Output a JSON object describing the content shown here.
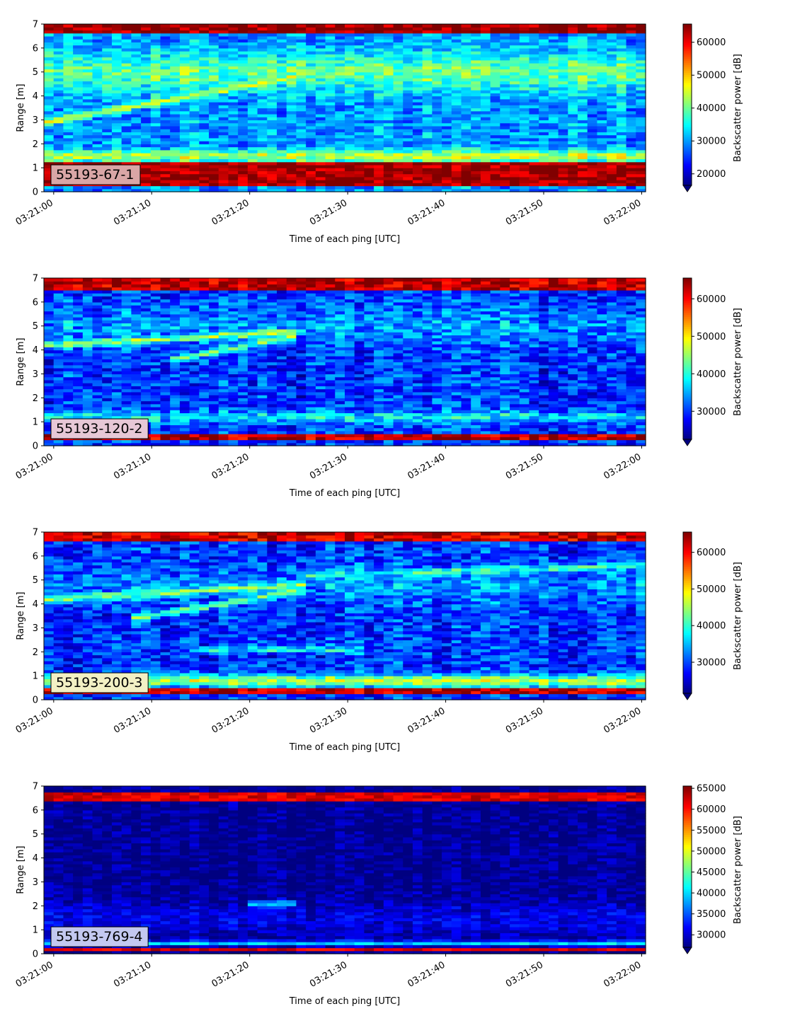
{
  "figure": {
    "panel_count": 4
  },
  "chart_data": [
    {
      "type": "heatmap",
      "panel_label": "55193-67-1",
      "panel_label_color": "#d9a6a6",
      "xlabel": "Time of each ping [UTC]",
      "ylabel": "Range [m]",
      "x_ticks": [
        "03:21:00",
        "03:21:10",
        "03:21:20",
        "03:21:30",
        "03:21:40",
        "03:21:50",
        "03:22:00"
      ],
      "x_range_seconds": [
        -1,
        60.4
      ],
      "ylim": [
        0,
        7
      ],
      "y_ticks": [
        0,
        1,
        2,
        3,
        4,
        5,
        6,
        7
      ],
      "colorbar": {
        "label": "Backscatter power [dB]",
        "cmap": "jet",
        "vmin": 16500,
        "vmax": 65535,
        "ticks": [
          20000,
          30000,
          40000,
          50000,
          60000
        ],
        "tick_labels": [
          "20000",
          "30000",
          "40000",
          "50000",
          "60000"
        ],
        "extend": "min"
      },
      "features": {
        "bottom_band": [
          0.2,
          1.2
        ],
        "bottom_value": 64000,
        "top_band": [
          6.6,
          7.0
        ],
        "top_value": 64000,
        "background_value": 30000,
        "mid_band": {
          "center": 5.0,
          "width": 1.6,
          "value": 40000
        },
        "low_band": {
          "center": 1.5,
          "width": 0.5,
          "value": 44000
        },
        "tracks": [
          {
            "t0": -1,
            "t1": 26,
            "r0": 2.9,
            "r1": 4.9,
            "value": 45000
          }
        ],
        "noise": 5000
      }
    },
    {
      "type": "heatmap",
      "panel_label": "55193-120-2",
      "panel_label_color": "#e7c8d6",
      "xlabel": "Time of each ping [UTC]",
      "ylabel": "Range [m]",
      "x_ticks": [
        "03:21:00",
        "03:21:10",
        "03:21:20",
        "03:21:30",
        "03:21:40",
        "03:21:50",
        "03:22:00"
      ],
      "x_range_seconds": [
        -1,
        60.4
      ],
      "ylim": [
        0,
        7
      ],
      "y_ticks": [
        0,
        1,
        2,
        3,
        4,
        5,
        6,
        7
      ],
      "colorbar": {
        "label": "Backscatter power [dB]",
        "cmap": "jet",
        "vmin": 22500,
        "vmax": 65535,
        "ticks": [
          30000,
          40000,
          50000,
          60000
        ],
        "tick_labels": [
          "30000",
          "40000",
          "50000",
          "60000"
        ],
        "extend": "min"
      },
      "features": {
        "bottom_band": [
          0.2,
          0.5
        ],
        "bottom_value": 63000,
        "top_band": [
          6.5,
          7.0
        ],
        "top_value": 63000,
        "background_value": 30000,
        "mid_band": {
          "center": 5.0,
          "width": 1.5,
          "value": 34000
        },
        "low_band": {
          "center": 1.2,
          "width": 0.5,
          "value": 38000
        },
        "tracks": [
          {
            "t0": -1,
            "t1": 26,
            "r0": 4.2,
            "r1": 4.8,
            "value": 45000
          },
          {
            "t0": 12,
            "t1": 25,
            "r0": 3.6,
            "r1": 4.6,
            "value": 44000
          }
        ],
        "noise": 5000
      }
    },
    {
      "type": "heatmap",
      "panel_label": "55193-200-3",
      "panel_label_color": "#f2f0c4",
      "xlabel": "Time of each ping [UTC]",
      "ylabel": "Range [m]",
      "x_ticks": [
        "03:21:00",
        "03:21:10",
        "03:21:20",
        "03:21:30",
        "03:21:40",
        "03:21:50",
        "03:22:00"
      ],
      "x_range_seconds": [
        -1,
        60.4
      ],
      "ylim": [
        0,
        7
      ],
      "y_ticks": [
        0,
        1,
        2,
        3,
        4,
        5,
        6,
        7
      ],
      "colorbar": {
        "label": "Backscatter power [dB]",
        "cmap": "jet",
        "vmin": 21500,
        "vmax": 65535,
        "ticks": [
          30000,
          40000,
          50000,
          60000
        ],
        "tick_labels": [
          "30000",
          "40000",
          "50000",
          "60000"
        ],
        "extend": "min"
      },
      "features": {
        "bottom_band": [
          0.2,
          0.5
        ],
        "bottom_value": 63000,
        "top_band": [
          6.6,
          7.0
        ],
        "top_value": 62000,
        "background_value": 29000,
        "mid_band": {
          "center": 4.8,
          "width": 1.6,
          "value": 33000
        },
        "low_band": {
          "center": 0.8,
          "width": 0.5,
          "value": 46000
        },
        "tracks": [
          {
            "t0": -1,
            "t1": 26,
            "r0": 4.2,
            "r1": 4.8,
            "value": 44000
          },
          {
            "t0": 8,
            "t1": 26,
            "r0": 3.4,
            "r1": 4.6,
            "value": 43000
          },
          {
            "t0": 25,
            "t1": 60.4,
            "r0": 5.2,
            "r1": 5.6,
            "value": 40000
          },
          {
            "t0": 14,
            "t1": 32,
            "r0": 2.1,
            "r1": 2.1,
            "value": 38000
          }
        ],
        "noise": 5000
      }
    },
    {
      "type": "heatmap",
      "panel_label": "55193-769-4",
      "panel_label_color": "#c3c8f0",
      "xlabel": "Time of each ping [UTC]",
      "ylabel": "Range [m]",
      "x_ticks": [
        "03:21:00",
        "03:21:10",
        "03:21:20",
        "03:21:30",
        "03:21:40",
        "03:21:50",
        "03:22:00"
      ],
      "x_range_seconds": [
        -1,
        60.4
      ],
      "ylim": [
        0,
        7
      ],
      "y_ticks": [
        0,
        1,
        2,
        3,
        4,
        5,
        6,
        7
      ],
      "colorbar": {
        "label": "Backscatter power [dB]",
        "cmap": "jet",
        "vmin": 27000,
        "vmax": 65535,
        "ticks": [
          30000,
          35000,
          40000,
          45000,
          50000,
          55000,
          60000,
          65000
        ],
        "tick_labels": [
          "30000",
          "35000",
          "40000",
          "45000",
          "50000",
          "55000",
          "60000",
          "65000"
        ],
        "extend": "min"
      },
      "features": {
        "bottom_band": [
          0.1,
          0.3
        ],
        "bottom_value": 62000,
        "top_band": [
          6.4,
          6.7
        ],
        "top_value": 62000,
        "background_value": 27500,
        "mid_band": {
          "center": 1.5,
          "width": 1.4,
          "value": 31000
        },
        "low_band": {
          "center": 0.45,
          "width": 0.2,
          "value": 40000
        },
        "tracks": [
          {
            "t0": 20,
            "t1": 25,
            "r0": 2.1,
            "r1": 2.1,
            "value": 39000
          }
        ],
        "noise": 2500
      }
    }
  ]
}
